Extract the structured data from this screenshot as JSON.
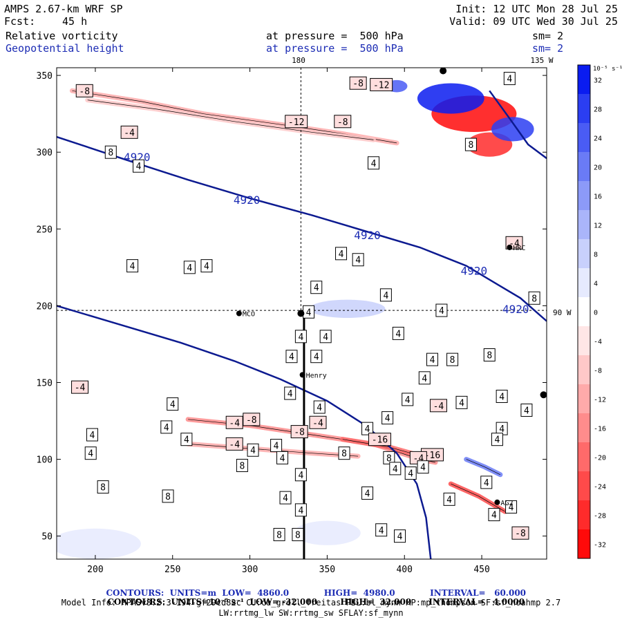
{
  "header": {
    "model": "AMPS 2.67-km WRF SP",
    "fcst_label": "Fcst:",
    "fcst_value": "45 h",
    "init": "Init: 12 UTC Mon 28 Jul 25",
    "valid": "Valid: 09 UTC Wed 30 Jul 25",
    "field1": "Relative vorticity",
    "field2": "Geopotential height",
    "pressure1": "at pressure =  500 hPa",
    "pressure2": "at pressure =  500 hPa",
    "sm1": "sm= 2",
    "sm2": "sm= 2"
  },
  "map_labels": {
    "lon_180": "180",
    "lon_135w": "135 W",
    "lon_90w": "90 W",
    "stations": [
      "MCO",
      "Henry",
      "HRC",
      "AG2"
    ]
  },
  "colorbar": {
    "unit": "10⁻⁵ s⁻¹",
    "labels": [
      "32",
      "28",
      "24",
      "20",
      "16",
      "12",
      "8",
      "4",
      "0",
      "-4",
      "-8",
      "-12",
      "-16",
      "-20",
      "-24",
      "-28",
      "-32"
    ],
    "colors": [
      "#0a1cf0",
      "#2b3ef2",
      "#4a5cf4",
      "#6a7bf6",
      "#8c9af8",
      "#aab5fa",
      "#c8d0fc",
      "#e6eafe",
      "#ffffff",
      "#ffe6e6",
      "#ffc8c8",
      "#ffaaaa",
      "#ff8c8c",
      "#ff6a6a",
      "#ff4a4a",
      "#ff2b2b",
      "#ff0a0a"
    ]
  },
  "footer": {
    "line1_a": "CONTOURS:  UNITS=m  LOW=  4860.0",
    "line1_b": "HIGH=  4980.0",
    "line1_c": "INTERVAL=   60.000",
    "line2": "CONTOURS:  UNITS=10⁻⁵ s⁻¹  LOW= -32.000        HIGH=  32.000      INTERVAL=   4.0000",
    "line3": "Model Info: MPASv8.2.3-194-gf29cd82c CU:cu_grell_freitas PBL:bl_mynn MP:mp_thompson SF:sf_noahmp 2.7",
    "line4": "LW:rrtmg_lw SW:rrtmg_sw SFLAY:sf_mynn"
  },
  "chart_data": {
    "type": "heatmap",
    "title": "Relative vorticity / Geopotential height at 500 hPa",
    "xlim": [
      175,
      492
    ],
    "ylim": [
      35,
      355
    ],
    "x_ticks": [
      200,
      250,
      300,
      350,
      400,
      450
    ],
    "y_ticks": [
      50,
      100,
      150,
      200,
      250,
      300,
      350
    ],
    "height_contours": [
      {
        "label": "4920",
        "points": [
          [
            175,
            310
          ],
          [
            220,
            295
          ],
          [
            260,
            282
          ],
          [
            300,
            270
          ],
          [
            340,
            259
          ],
          [
            380,
            247
          ],
          [
            410,
            238
          ],
          [
            440,
            226
          ],
          [
            460,
            214
          ],
          [
            475,
            205
          ],
          [
            492,
            190
          ]
        ]
      },
      {
        "label": "",
        "points": [
          [
            175,
            200
          ],
          [
            215,
            188
          ],
          [
            255,
            176
          ],
          [
            290,
            164
          ],
          [
            320,
            152
          ],
          [
            350,
            138
          ],
          [
            375,
            122
          ],
          [
            395,
            104
          ],
          [
            408,
            84
          ],
          [
            414,
            62
          ],
          [
            417,
            35
          ]
        ]
      },
      {
        "label": "",
        "points": [
          [
            455,
            340
          ],
          [
            468,
            322
          ],
          [
            480,
            305
          ],
          [
            492,
            296
          ]
        ]
      }
    ],
    "height_contour_labels": [
      {
        "text": "4920",
        "x": 227,
        "y": 297
      },
      {
        "text": "4920",
        "x": 298,
        "y": 269
      },
      {
        "text": "4920",
        "x": 376,
        "y": 246
      },
      {
        "text": "4920",
        "x": 445,
        "y": 223
      },
      {
        "text": "4920",
        "x": 472,
        "y": 198
      }
    ],
    "vorticity_labels": [
      {
        "text": "-8",
        "x": 193,
        "y": 340
      },
      {
        "text": "-4",
        "x": 222,
        "y": 313
      },
      {
        "text": "8",
        "x": 210,
        "y": 300
      },
      {
        "text": "4",
        "x": 228,
        "y": 291
      },
      {
        "text": "-8",
        "x": 370,
        "y": 345
      },
      {
        "text": "-12",
        "x": 330,
        "y": 320
      },
      {
        "text": "-8",
        "x": 360,
        "y": 320
      },
      {
        "text": "-12",
        "x": 385,
        "y": 344
      },
      {
        "text": "4",
        "x": 468,
        "y": 348
      },
      {
        "text": "8",
        "x": 443,
        "y": 305
      },
      {
        "text": "4",
        "x": 380,
        "y": 293
      },
      {
        "text": "-4",
        "x": 471,
        "y": 241
      },
      {
        "text": "4",
        "x": 224,
        "y": 226
      },
      {
        "text": "4",
        "x": 261,
        "y": 225
      },
      {
        "text": "4",
        "x": 272,
        "y": 226
      },
      {
        "text": "4",
        "x": 359,
        "y": 234
      },
      {
        "text": "4",
        "x": 370,
        "y": 230
      },
      {
        "text": "4",
        "x": 343,
        "y": 212
      },
      {
        "text": "4",
        "x": 388,
        "y": 207
      },
      {
        "text": "8",
        "x": 484,
        "y": 205
      },
      {
        "text": "4",
        "x": 424,
        "y": 197
      },
      {
        "text": "4",
        "x": 338,
        "y": 196
      },
      {
        "text": "4",
        "x": 333,
        "y": 180
      },
      {
        "text": "4",
        "x": 349,
        "y": 180
      },
      {
        "text": "4",
        "x": 396,
        "y": 182
      },
      {
        "text": "4",
        "x": 327,
        "y": 167
      },
      {
        "text": "4",
        "x": 343,
        "y": 167
      },
      {
        "text": "4",
        "x": 418,
        "y": 165
      },
      {
        "text": "8",
        "x": 431,
        "y": 165
      },
      {
        "text": "8",
        "x": 455,
        "y": 168
      },
      {
        "text": "-4",
        "x": 190,
        "y": 147
      },
      {
        "text": "4",
        "x": 413,
        "y": 153
      },
      {
        "text": "4",
        "x": 402,
        "y": 139
      },
      {
        "text": "4",
        "x": 326,
        "y": 143
      },
      {
        "text": "4",
        "x": 250,
        "y": 136
      },
      {
        "text": "4",
        "x": 437,
        "y": 137
      },
      {
        "text": "4",
        "x": 463,
        "y": 141
      },
      {
        "text": "-4",
        "x": 422,
        "y": 135
      },
      {
        "text": "4",
        "x": 479,
        "y": 132
      },
      {
        "text": "4",
        "x": 345,
        "y": 134
      },
      {
        "text": "-8",
        "x": 301,
        "y": 126
      },
      {
        "text": "-4",
        "x": 290,
        "y": 124
      },
      {
        "text": "-4",
        "x": 344,
        "y": 124
      },
      {
        "text": "4",
        "x": 389,
        "y": 127
      },
      {
        "text": "4",
        "x": 246,
        "y": 121
      },
      {
        "text": "-8",
        "x": 332,
        "y": 118
      },
      {
        "text": "4",
        "x": 376,
        "y": 120
      },
      {
        "text": "4",
        "x": 463,
        "y": 120
      },
      {
        "text": "4",
        "x": 198,
        "y": 116
      },
      {
        "text": "4",
        "x": 259,
        "y": 113
      },
      {
        "text": "-16",
        "x": 384,
        "y": 113
      },
      {
        "text": "-4",
        "x": 290,
        "y": 110
      },
      {
        "text": "4",
        "x": 302,
        "y": 106
      },
      {
        "text": "4",
        "x": 317,
        "y": 109
      },
      {
        "text": "-16",
        "x": 418,
        "y": 103
      },
      {
        "text": "-4",
        "x": 409,
        "y": 101
      },
      {
        "text": "4",
        "x": 460,
        "y": 113
      },
      {
        "text": "4",
        "x": 197,
        "y": 104
      },
      {
        "text": "4",
        "x": 321,
        "y": 101
      },
      {
        "text": "8",
        "x": 361,
        "y": 104
      },
      {
        "text": "8",
        "x": 390,
        "y": 101
      },
      {
        "text": "4",
        "x": 394,
        "y": 94
      },
      {
        "text": "4",
        "x": 412,
        "y": 95
      },
      {
        "text": "8",
        "x": 295,
        "y": 96
      },
      {
        "text": "4",
        "x": 333,
        "y": 90
      },
      {
        "text": "4",
        "x": 404,
        "y": 91
      },
      {
        "text": "8",
        "x": 205,
        "y": 82
      },
      {
        "text": "8",
        "x": 247,
        "y": 76
      },
      {
        "text": "4",
        "x": 376,
        "y": 78
      },
      {
        "text": "4",
        "x": 453,
        "y": 85
      },
      {
        "text": "4",
        "x": 323,
        "y": 75
      },
      {
        "text": "4",
        "x": 429,
        "y": 74
      },
      {
        "text": "4",
        "x": 333,
        "y": 67
      },
      {
        "text": "4",
        "x": 469,
        "y": 69
      },
      {
        "text": "4",
        "x": 458,
        "y": 64
      },
      {
        "text": "4",
        "x": 385,
        "y": 54
      },
      {
        "text": "4",
        "x": 397,
        "y": 50
      },
      {
        "text": "8",
        "x": 319,
        "y": 51
      },
      {
        "text": "8",
        "x": 331,
        "y": 51
      },
      {
        "text": "-8",
        "x": 475,
        "y": 52
      }
    ],
    "stations": [
      {
        "name": "MCO",
        "x": 293,
        "y": 195
      },
      {
        "name": "",
        "x": 333,
        "y": 195
      },
      {
        "name": "Henry",
        "x": 334,
        "y": 155
      },
      {
        "name": "HRC",
        "x": 468,
        "y": 238
      },
      {
        "name": "AG2",
        "x": 460,
        "y": 72
      },
      {
        "name": "",
        "x": 490,
        "y": 142
      },
      {
        "name": "",
        "x": 425,
        "y": 353
      }
    ],
    "vorticity_streaks": [
      {
        "value": -12,
        "points": [
          [
            185,
            340
          ],
          [
            230,
            333
          ],
          [
            270,
            325
          ],
          [
            320,
            318
          ],
          [
            360,
            312
          ],
          [
            395,
            306
          ]
        ]
      },
      {
        "value": -8,
        "points": [
          [
            195,
            334
          ],
          [
            240,
            328
          ],
          [
            290,
            320
          ],
          [
            340,
            313
          ],
          [
            380,
            308
          ]
        ]
      },
      {
        "value": -16,
        "points": [
          [
            260,
            126
          ],
          [
            300,
            122
          ],
          [
            340,
            116
          ],
          [
            380,
            110
          ],
          [
            410,
            100
          ],
          [
            420,
            98
          ]
        ]
      },
      {
        "value": -12,
        "points": [
          [
            260,
            110
          ],
          [
            300,
            107
          ],
          [
            340,
            104
          ],
          [
            370,
            102
          ]
        ]
      },
      {
        "value": -20,
        "points": [
          [
            360,
            113
          ],
          [
            390,
            108
          ],
          [
            415,
            101
          ]
        ]
      },
      {
        "value": -24,
        "points": [
          [
            430,
            84
          ],
          [
            448,
            76
          ],
          [
            465,
            66
          ]
        ]
      },
      {
        "value": 20,
        "points": [
          [
            440,
            100
          ],
          [
            452,
            95
          ],
          [
            462,
            90
          ]
        ]
      }
    ],
    "vorticity_patches": [
      {
        "value": -32,
        "x": 445,
        "y": 325,
        "rx": 28,
        "ry": 12
      },
      {
        "value": 32,
        "x": 430,
        "y": 335,
        "rx": 22,
        "ry": 10
      },
      {
        "value": -28,
        "x": 455,
        "y": 305,
        "rx": 15,
        "ry": 8
      },
      {
        "value": 28,
        "x": 470,
        "y": 315,
        "rx": 14,
        "ry": 8
      },
      {
        "value": 24,
        "x": 395,
        "y": 343,
        "rx": 7,
        "ry": 4
      },
      {
        "value": 8,
        "x": 363,
        "y": 198,
        "rx": 25,
        "ry": 6
      },
      {
        "value": 4,
        "x": 200,
        "y": 45,
        "rx": 30,
        "ry": 10
      },
      {
        "value": 4,
        "x": 350,
        "y": 52,
        "rx": 22,
        "ry": 8
      }
    ],
    "dashed_lines": [
      {
        "points": [
          [
            175,
            197
          ],
          [
            492,
            197
          ]
        ]
      },
      {
        "points": [
          [
            333,
            355
          ],
          [
            333,
            197
          ]
        ]
      }
    ],
    "track": {
      "points": [
        [
          335,
          197
        ],
        [
          335,
          35
        ]
      ]
    }
  }
}
